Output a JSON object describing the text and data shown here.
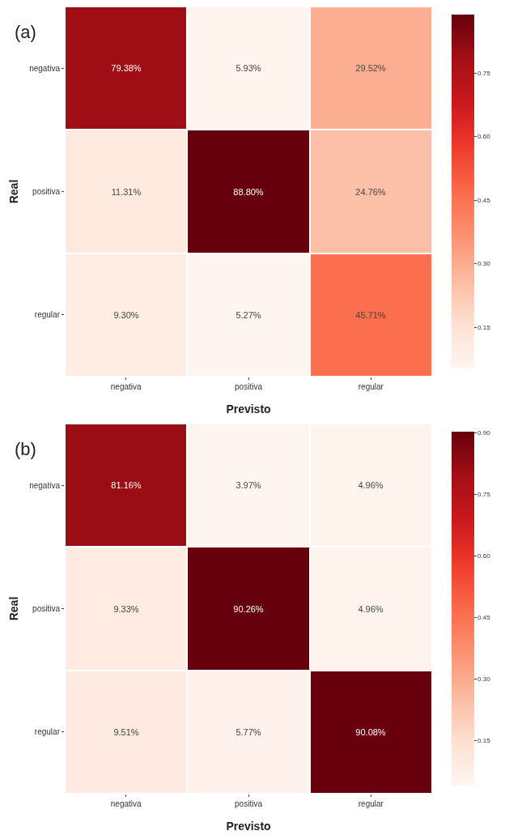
{
  "chart_data": [
    {
      "type": "heatmap",
      "title": "(a)",
      "xlabel": "Previsto",
      "ylabel": "Real",
      "categories": [
        "negativa",
        "positiva",
        "regular"
      ],
      "y_categories": [
        "negativa",
        "positiva",
        "regular"
      ],
      "cells": [
        [
          0.7938,
          0.0593,
          0.2952
        ],
        [
          0.1131,
          0.888,
          0.2476
        ],
        [
          0.093,
          0.0527,
          0.4571
        ]
      ],
      "cell_labels": [
        [
          "79.38%",
          "5.93%",
          "29.52%"
        ],
        [
          "11.31%",
          "88.80%",
          "24.76%"
        ],
        [
          "9.30%",
          "5.27%",
          "45.71%"
        ]
      ],
      "clim": [
        0.0527,
        0.888
      ],
      "cticks": [
        0.15,
        {
          "value": 0.3,
          "label": "0.30"
        },
        0.45,
        {
          "value": 0.6,
          "label": "0.60"
        },
        0.75
      ]
    },
    {
      "type": "heatmap",
      "title": "(b)",
      "xlabel": "Previsto",
      "ylabel": "Real",
      "categories": [
        "negativa",
        "positiva",
        "regular"
      ],
      "y_categories": [
        "negativa",
        "positiva",
        "regular"
      ],
      "cells": [
        [
          0.8116,
          0.0397,
          0.0496
        ],
        [
          0.0933,
          0.9026,
          0.0496
        ],
        [
          0.0951,
          0.0577,
          0.9008
        ]
      ],
      "cell_labels": [
        [
          "81.16%",
          "3.97%",
          "4.96%"
        ],
        [
          "9.33%",
          "90.26%",
          "4.96%"
        ],
        [
          "9.51%",
          "5.77%",
          "90.08%"
        ]
      ],
      "clim": [
        0.0397,
        0.9026
      ],
      "cticks": [
        0.15,
        {
          "value": 0.3,
          "label": "0.30"
        },
        0.45,
        {
          "value": 0.6,
          "label": "0.60"
        },
        0.75,
        {
          "value": 0.9,
          "label": "0.90"
        }
      ]
    }
  ]
}
